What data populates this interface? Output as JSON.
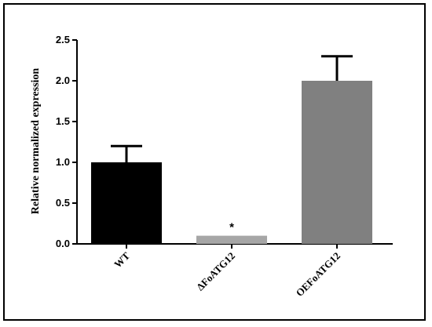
{
  "chart_data": {
    "type": "bar",
    "title": "",
    "xlabel": "",
    "ylabel": "Relative normalized expression",
    "ylim": [
      0,
      2.5
    ],
    "yticks": [
      0.0,
      0.5,
      1.0,
      1.5,
      2.0,
      2.5
    ],
    "ytick_labels": [
      "0.0",
      "0.5",
      "1.0",
      "1.5",
      "2.0",
      "2.5"
    ],
    "categories": [
      "WT",
      "ΔFoATG12",
      "OEFoATG12"
    ],
    "values": [
      1.0,
      0.1,
      2.0
    ],
    "errors": [
      0.2,
      0.0,
      0.3
    ],
    "colors": [
      "#000000",
      "#a6a6a6",
      "#808080"
    ],
    "annotations": [
      "",
      "*",
      ""
    ],
    "grid": false,
    "legend": "none"
  }
}
